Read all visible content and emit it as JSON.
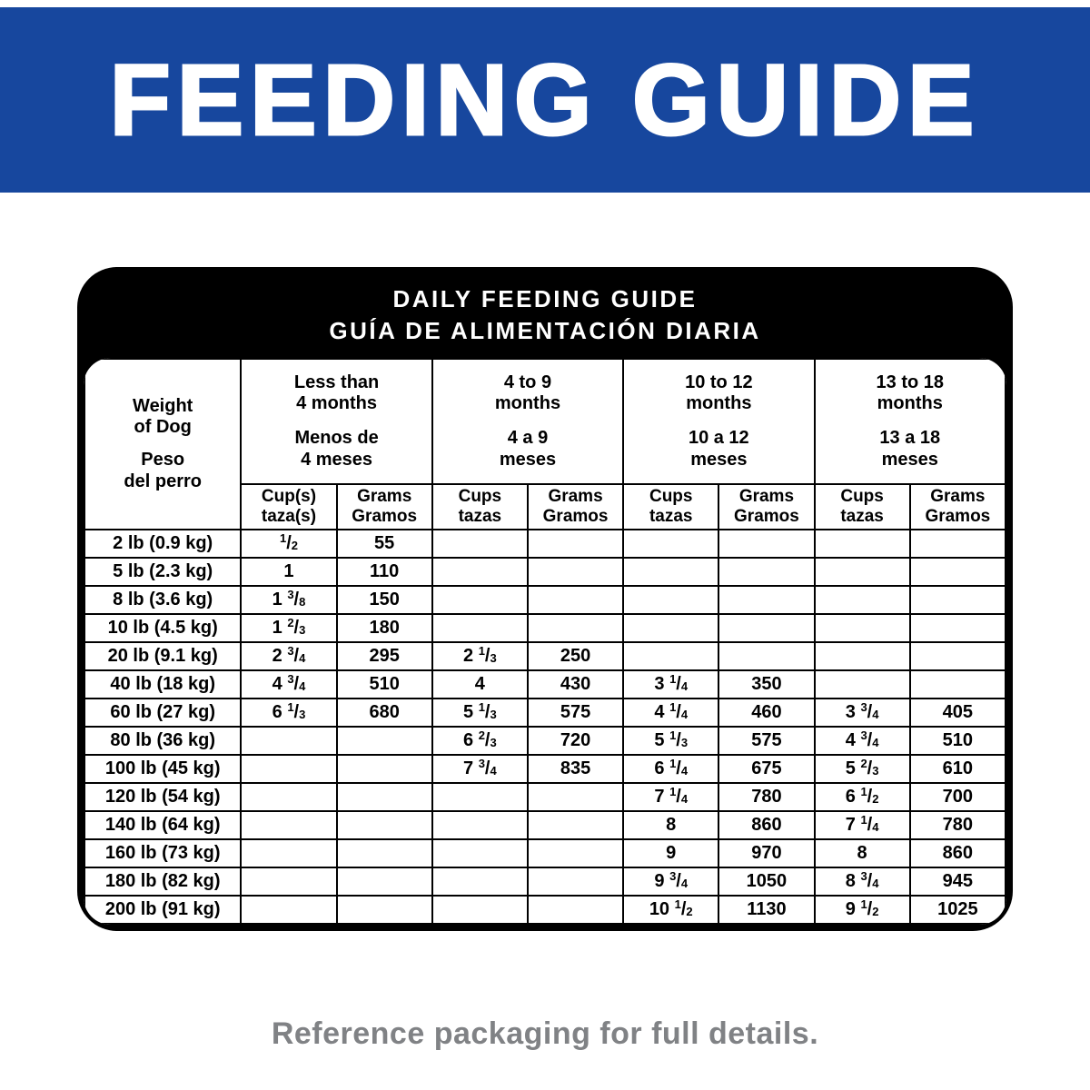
{
  "colors": {
    "banner_blue": "#17479E",
    "card_black": "#000000",
    "footer_gray": "#808285"
  },
  "banner": {
    "title": "FEEDING GUIDE"
  },
  "card": {
    "title_en": "DAILY FEEDING GUIDE",
    "title_es": "GUÍA DE ALIMENTACIÓN DIARIA"
  },
  "table": {
    "weight_header": {
      "en": "Weight\nof Dog",
      "es": "Peso\ndel perro"
    },
    "age_groups": [
      {
        "en": "Less than\n4 months",
        "es": "Menos de\n4 meses",
        "cups_label": "Cup(s)\ntaza(s)",
        "grams_label": "Grams\nGramos"
      },
      {
        "en": "4 to 9\nmonths",
        "es": "4 a 9\nmeses",
        "cups_label": "Cups\ntazas",
        "grams_label": "Grams\nGramos"
      },
      {
        "en": "10 to 12\nmonths",
        "es": "10 a 12\nmeses",
        "cups_label": "Cups\ntazas",
        "grams_label": "Grams\nGramos"
      },
      {
        "en": "13 to 18\nmonths",
        "es": "13 a 18\nmeses",
        "cups_label": "Cups\ntazas",
        "grams_label": "Grams\nGramos"
      }
    ],
    "rows": [
      {
        "weight": "2 lb (0.9 kg)",
        "cells": [
          "1/2",
          "55",
          "",
          "",
          "",
          "",
          "",
          ""
        ]
      },
      {
        "weight": "5 lb (2.3 kg)",
        "cells": [
          "1",
          "110",
          "",
          "",
          "",
          "",
          "",
          ""
        ]
      },
      {
        "weight": "8 lb (3.6 kg)",
        "cells": [
          "1 3/8",
          "150",
          "",
          "",
          "",
          "",
          "",
          ""
        ]
      },
      {
        "weight": "10 lb (4.5 kg)",
        "cells": [
          "1 2/3",
          "180",
          "",
          "",
          "",
          "",
          "",
          ""
        ]
      },
      {
        "weight": "20 lb (9.1 kg)",
        "cells": [
          "2 3/4",
          "295",
          "2 1/3",
          "250",
          "",
          "",
          "",
          ""
        ]
      },
      {
        "weight": "40 lb (18 kg)",
        "cells": [
          "4 3/4",
          "510",
          "4",
          "430",
          "3 1/4",
          "350",
          "",
          ""
        ]
      },
      {
        "weight": "60 lb (27 kg)",
        "cells": [
          "6 1/3",
          "680",
          "5 1/3",
          "575",
          "4 1/4",
          "460",
          "3 3/4",
          "405"
        ]
      },
      {
        "weight": "80 lb (36 kg)",
        "cells": [
          "",
          "",
          "6 2/3",
          "720",
          "5 1/3",
          "575",
          "4 3/4",
          "510"
        ]
      },
      {
        "weight": "100 lb (45 kg)",
        "cells": [
          "",
          "",
          "7 3/4",
          "835",
          "6 1/4",
          "675",
          "5 2/3",
          "610"
        ]
      },
      {
        "weight": "120 lb (54 kg)",
        "cells": [
          "",
          "",
          "",
          "",
          "7 1/4",
          "780",
          "6 1/2",
          "700"
        ]
      },
      {
        "weight": "140 lb (64 kg)",
        "cells": [
          "",
          "",
          "",
          "",
          "8",
          "860",
          "7 1/4",
          "780"
        ]
      },
      {
        "weight": "160 lb (73 kg)",
        "cells": [
          "",
          "",
          "",
          "",
          "9",
          "970",
          "8",
          "860"
        ]
      },
      {
        "weight": "180 lb (82 kg)",
        "cells": [
          "",
          "",
          "",
          "",
          "9 3/4",
          "1050",
          "8 3/4",
          "945"
        ]
      },
      {
        "weight": "200 lb (91 kg)",
        "cells": [
          "",
          "",
          "",
          "",
          "10 1/2",
          "1130",
          "9 1/2",
          "1025"
        ]
      }
    ]
  },
  "footer": {
    "text": "Reference packaging for full details."
  }
}
